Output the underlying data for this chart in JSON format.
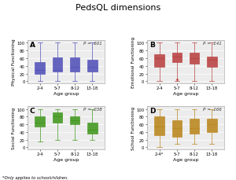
{
  "title": "PedsQL dimensions",
  "panels": [
    {
      "label": "A",
      "ylabel": "Physical Functioning",
      "pvalue": "P = .601",
      "color": "#5555bb",
      "facecolor": "#7777cc",
      "groups": [
        "2-4",
        "5-7",
        "8-12",
        "13-18"
      ],
      "medians": [
        30,
        30,
        37,
        37
      ],
      "q1": [
        20,
        25,
        25,
        25
      ],
      "q3": [
        50,
        62,
        62,
        55
      ],
      "whislo": [
        0,
        0,
        0,
        0
      ],
      "whishi": [
        100,
        100,
        100,
        100
      ],
      "fliers": []
    },
    {
      "label": "B",
      "ylabel": "Emotional Functioning",
      "pvalue": "P = .141",
      "color": "#bb4444",
      "facecolor": "#cc7777",
      "groups": [
        "2-4",
        "5-7",
        "8-12",
        "13-18"
      ],
      "medians": [
        60,
        65,
        60,
        55
      ],
      "q1": [
        38,
        50,
        45,
        38
      ],
      "q3": [
        70,
        75,
        75,
        65
      ],
      "whislo": [
        0,
        0,
        0,
        0
      ],
      "whishi": [
        100,
        100,
        100,
        100
      ],
      "fliers": [
        [
          2,
          5
        ]
      ]
    },
    {
      "label": "C",
      "ylabel": "Social Functioning",
      "pvalue": "P = .038",
      "color": "#449922",
      "facecolor": "#66bb44",
      "groups": [
        "2-4",
        "5-7",
        "8-12",
        "13-18"
      ],
      "medians": [
        65,
        80,
        70,
        45
      ],
      "q1": [
        55,
        65,
        60,
        35
      ],
      "q3": [
        80,
        90,
        80,
        65
      ],
      "whislo": [
        15,
        20,
        20,
        20
      ],
      "whishi": [
        100,
        100,
        100,
        100
      ],
      "fliers": []
    },
    {
      "label": "D",
      "ylabel": "School Functioning",
      "pvalue": "P = .166",
      "color": "#bb8822",
      "facecolor": "#ccaa44",
      "groups": [
        "2-4*",
        "5-7",
        "8-12",
        "13-18"
      ],
      "medians": [
        55,
        50,
        50,
        60
      ],
      "q1": [
        32,
        28,
        35,
        40
      ],
      "q3": [
        80,
        70,
        75,
        75
      ],
      "whislo": [
        0,
        10,
        10,
        10
      ],
      "whishi": [
        100,
        100,
        100,
        100
      ],
      "fliers": []
    }
  ],
  "footnote": "*Only applies to schoolchildren.",
  "bg_color": "#ececec",
  "xlabel": "Age group"
}
